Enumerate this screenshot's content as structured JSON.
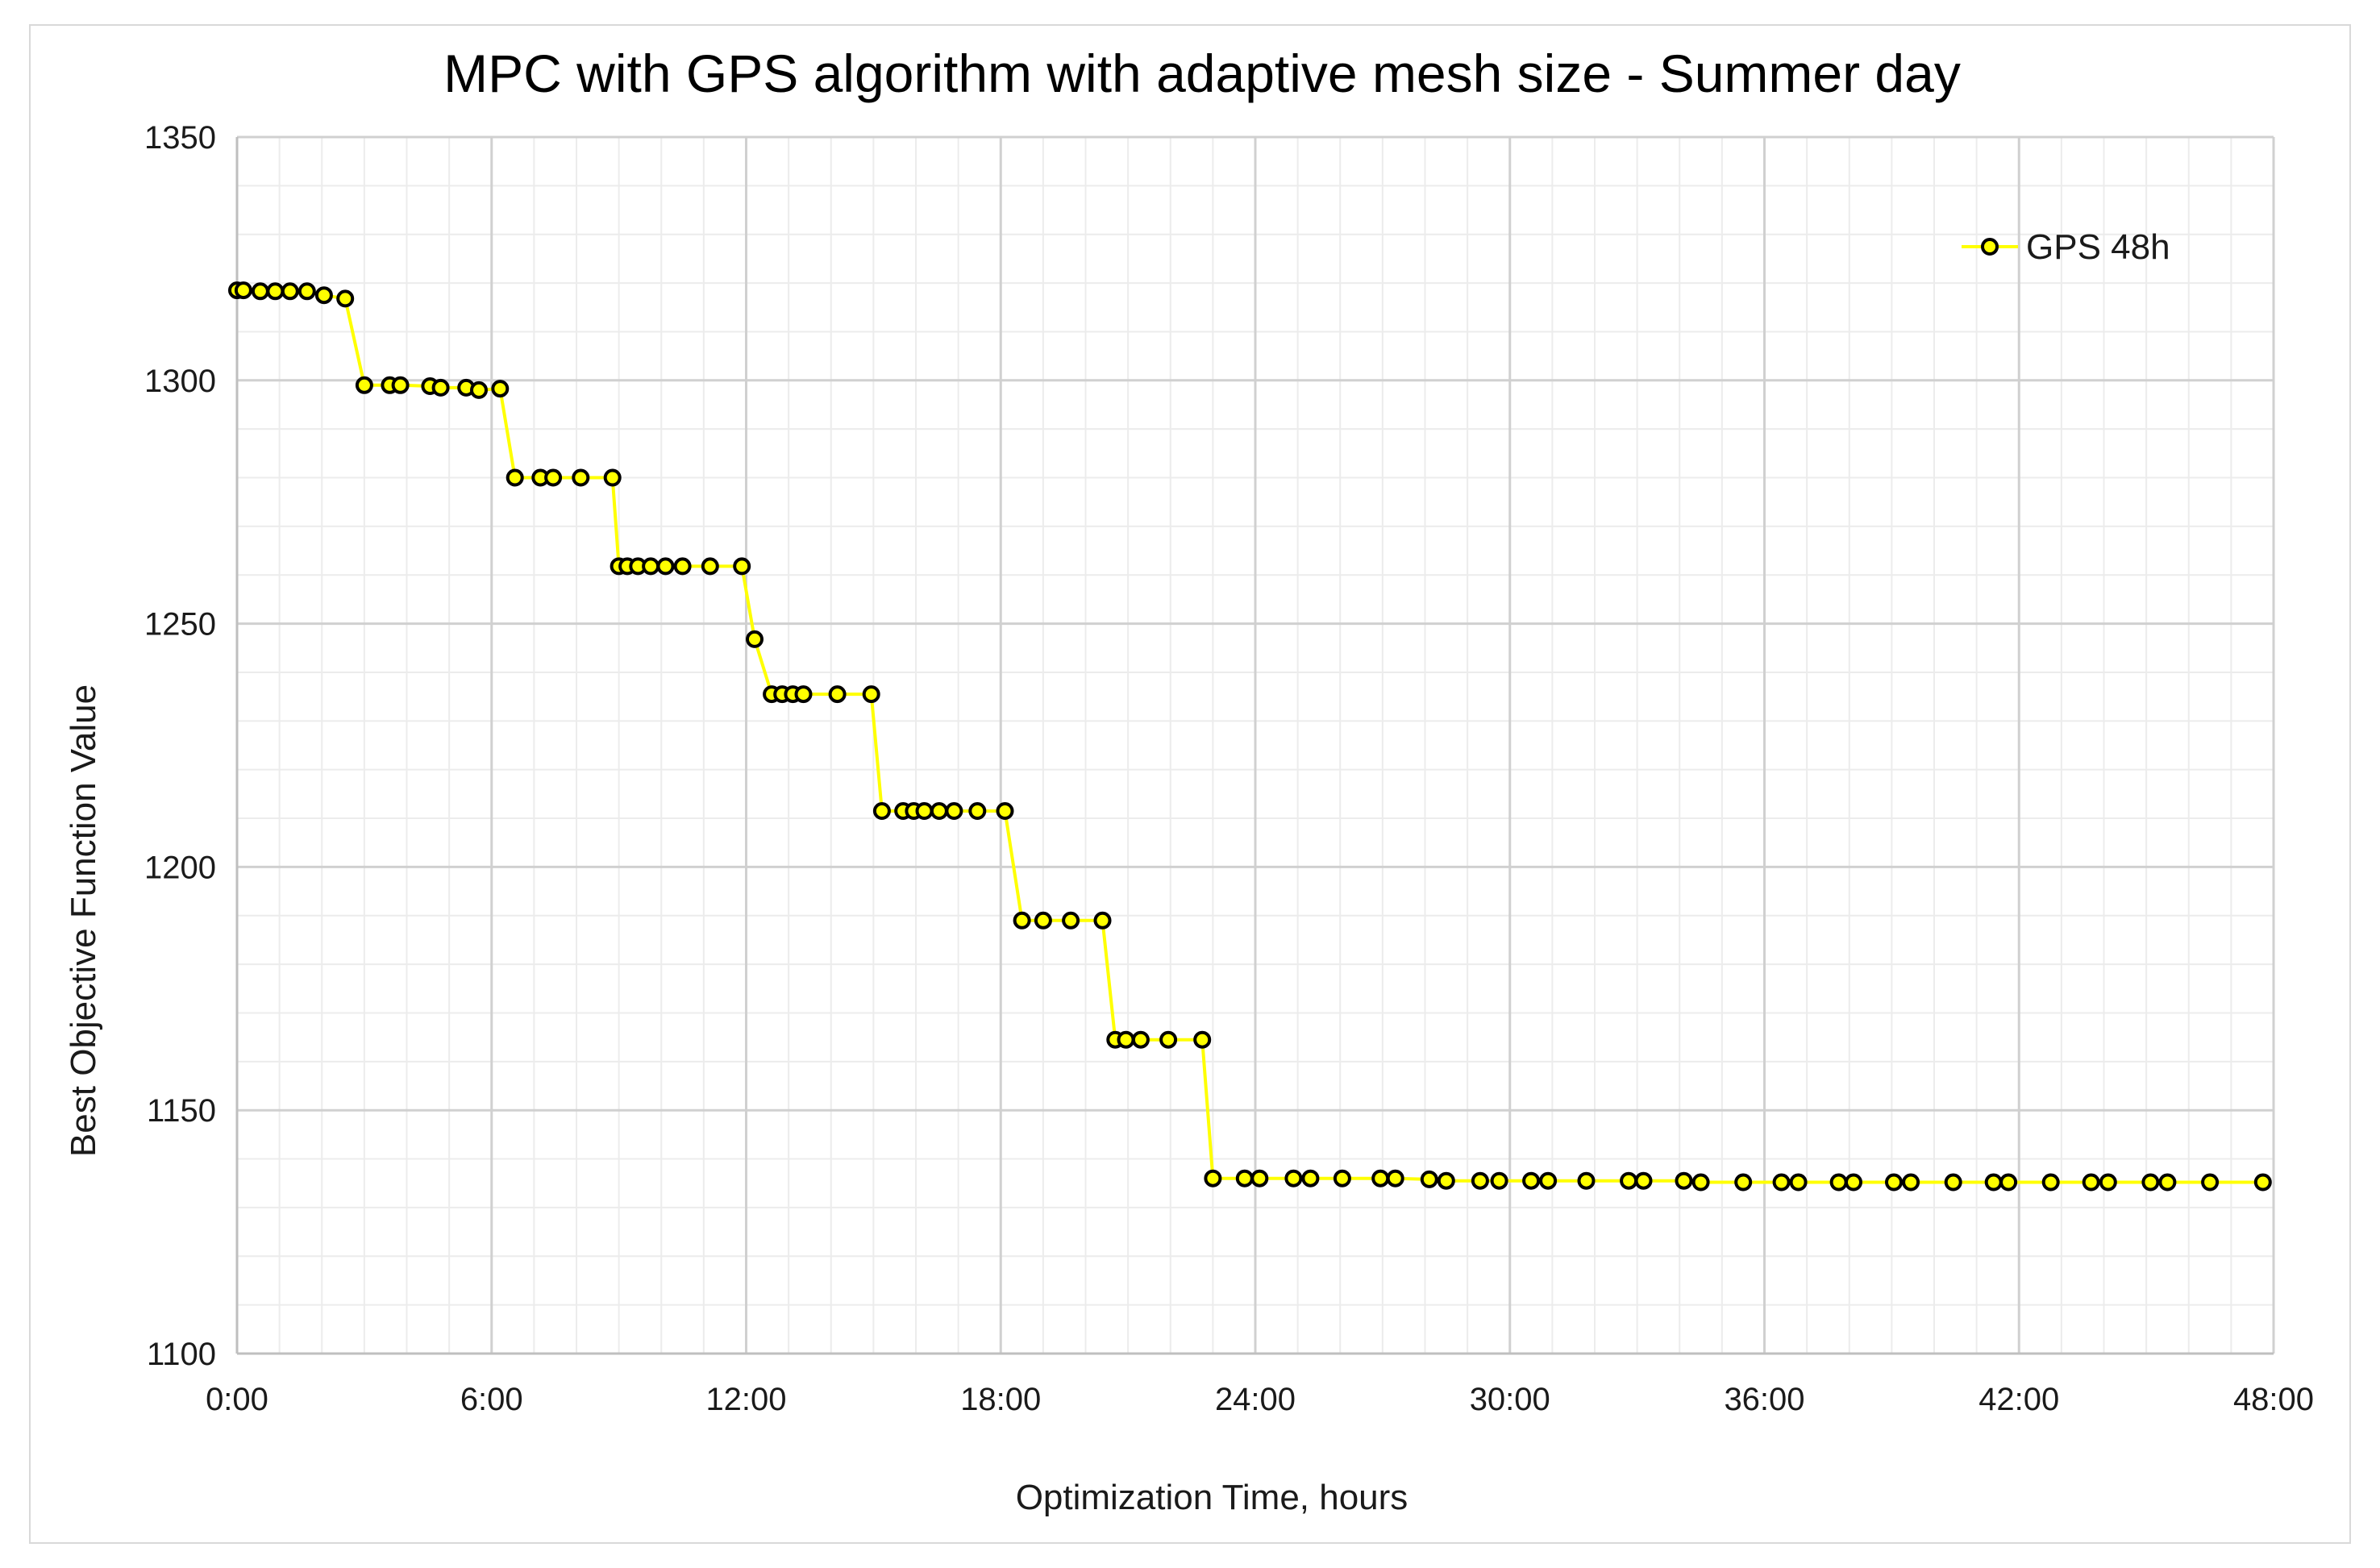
{
  "chart_data": {
    "type": "line",
    "title": "MPC with GPS algorithm with adaptive mesh size - Summer day",
    "xlabel": "Optimization Time, hours",
    "ylabel": "Best Objective Function Value",
    "xlim_hours": [
      0,
      48
    ],
    "ylim": [
      1100,
      1350
    ],
    "x_ticks": [
      "0:00",
      "6:00",
      "12:00",
      "18:00",
      "24:00",
      "30:00",
      "36:00",
      "42:00",
      "48:00"
    ],
    "y_ticks": [
      "1100",
      "1150",
      "1200",
      "1250",
      "1300",
      "1350"
    ],
    "grid": "major and minor",
    "legend_position": "top-right",
    "series": [
      {
        "name": "GPS 48h",
        "color": "#ffff00",
        "marker_edge": "#000000",
        "points": [
          [
            0.0,
            1318.5
          ],
          [
            0.15,
            1318.5
          ],
          [
            0.55,
            1318.3
          ],
          [
            0.9,
            1318.3
          ],
          [
            1.25,
            1318.3
          ],
          [
            1.65,
            1318.3
          ],
          [
            2.05,
            1317.5
          ],
          [
            2.55,
            1316.8
          ],
          [
            3.0,
            1299.0
          ],
          [
            3.6,
            1299.0
          ],
          [
            3.85,
            1299.0
          ],
          [
            4.55,
            1298.8
          ],
          [
            4.8,
            1298.5
          ],
          [
            5.4,
            1298.5
          ],
          [
            5.7,
            1298.0
          ],
          [
            6.2,
            1298.3
          ],
          [
            6.55,
            1280.0
          ],
          [
            7.15,
            1280.0
          ],
          [
            7.45,
            1280.0
          ],
          [
            8.1,
            1280.0
          ],
          [
            8.85,
            1280.0
          ],
          [
            9.0,
            1261.8
          ],
          [
            9.2,
            1261.8
          ],
          [
            9.45,
            1261.8
          ],
          [
            9.75,
            1261.8
          ],
          [
            10.1,
            1261.8
          ],
          [
            10.5,
            1261.8
          ],
          [
            11.15,
            1261.8
          ],
          [
            11.9,
            1261.8
          ],
          [
            12.2,
            1246.8
          ],
          [
            12.6,
            1235.5
          ],
          [
            12.85,
            1235.5
          ],
          [
            13.1,
            1235.5
          ],
          [
            13.35,
            1235.5
          ],
          [
            14.15,
            1235.5
          ],
          [
            14.95,
            1235.5
          ],
          [
            15.2,
            1211.5
          ],
          [
            15.7,
            1211.5
          ],
          [
            15.95,
            1211.5
          ],
          [
            16.2,
            1211.5
          ],
          [
            16.55,
            1211.5
          ],
          [
            16.9,
            1211.5
          ],
          [
            17.45,
            1211.5
          ],
          [
            18.1,
            1211.5
          ],
          [
            18.5,
            1189.0
          ],
          [
            19.0,
            1189.0
          ],
          [
            19.65,
            1189.0
          ],
          [
            20.4,
            1189.0
          ],
          [
            20.7,
            1164.5
          ],
          [
            20.95,
            1164.5
          ],
          [
            21.3,
            1164.5
          ],
          [
            21.95,
            1164.5
          ],
          [
            22.75,
            1164.5
          ],
          [
            23.0,
            1136.0
          ],
          [
            23.75,
            1136.0
          ],
          [
            24.1,
            1136.0
          ],
          [
            24.9,
            1136.0
          ],
          [
            25.3,
            1136.0
          ],
          [
            26.05,
            1136.0
          ],
          [
            26.95,
            1136.0
          ],
          [
            27.3,
            1136.0
          ],
          [
            28.1,
            1135.8
          ],
          [
            28.5,
            1135.5
          ],
          [
            29.3,
            1135.5
          ],
          [
            29.75,
            1135.5
          ],
          [
            30.5,
            1135.5
          ],
          [
            30.9,
            1135.5
          ],
          [
            31.8,
            1135.5
          ],
          [
            32.8,
            1135.5
          ],
          [
            33.15,
            1135.5
          ],
          [
            34.1,
            1135.5
          ],
          [
            34.5,
            1135.2
          ],
          [
            35.5,
            1135.2
          ],
          [
            36.4,
            1135.2
          ],
          [
            36.8,
            1135.2
          ],
          [
            37.75,
            1135.2
          ],
          [
            38.1,
            1135.2
          ],
          [
            39.05,
            1135.2
          ],
          [
            39.45,
            1135.2
          ],
          [
            40.45,
            1135.2
          ],
          [
            41.4,
            1135.2
          ],
          [
            41.75,
            1135.2
          ],
          [
            42.75,
            1135.2
          ],
          [
            43.7,
            1135.2
          ],
          [
            44.1,
            1135.2
          ],
          [
            45.1,
            1135.2
          ],
          [
            45.5,
            1135.2
          ],
          [
            46.5,
            1135.2
          ],
          [
            47.75,
            1135.2
          ]
        ]
      }
    ]
  }
}
